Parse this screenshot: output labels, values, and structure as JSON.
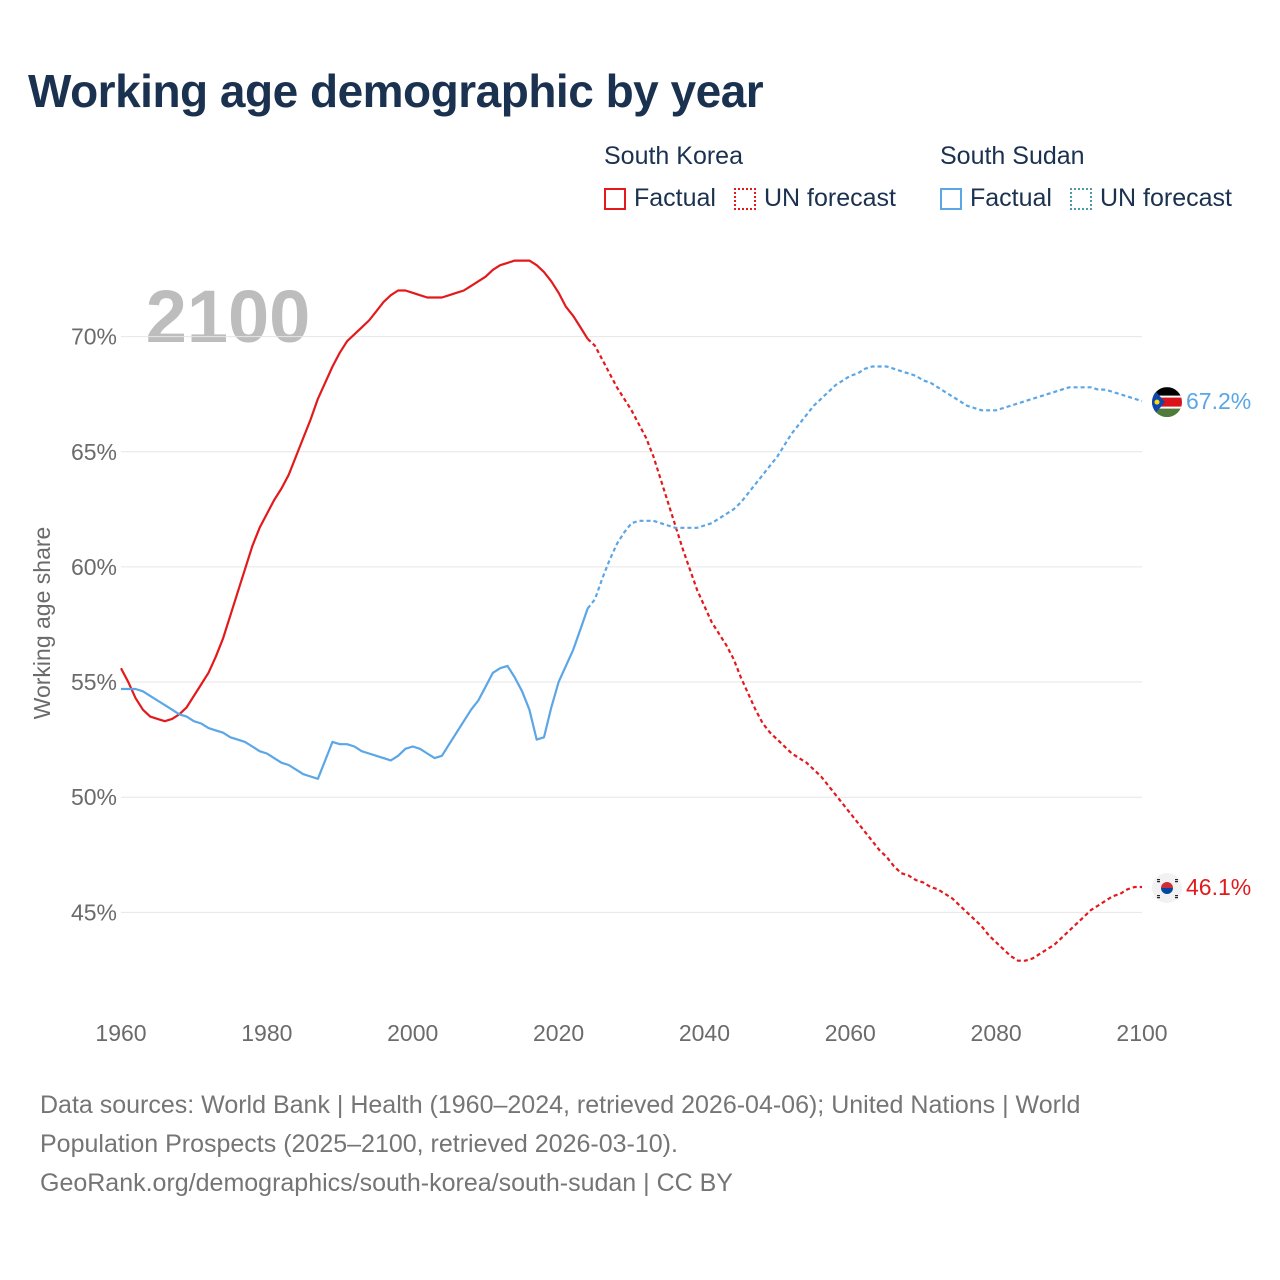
{
  "title": "Working age demographic by year",
  "year_watermark": "2100",
  "legend": {
    "groups": [
      {
        "name": "South Korea",
        "factual_label": "Factual",
        "forecast_label": "UN forecast",
        "color": "#e31a1c"
      },
      {
        "name": "South Sudan",
        "factual_label": "Factual",
        "forecast_label": "UN forecast",
        "color": "#5aa6e6"
      }
    ]
  },
  "footer": {
    "line1": "Data sources: World Bank | Health (1960–2024, retrieved 2026-04-06); United Nations | World",
    "line2": "Population Prospects (2025–2100, retrieved 2026-03-10).",
    "line3": "GeoRank.org/demographics/south-korea/south-sudan | CC BY"
  },
  "flags": {
    "south_korea": "south-korea-flag-icon",
    "south_sudan": "south-sudan-flag-icon"
  },
  "chart_data": {
    "type": "line",
    "ylabel": "Working age share",
    "xlabel": "",
    "xlim": [
      1960,
      2100
    ],
    "ylim": [
      40.5,
      73.5
    ],
    "x_ticks": [
      1960,
      1980,
      2000,
      2020,
      2040,
      2060,
      2080,
      2100
    ],
    "y_ticks": [
      45,
      50,
      55,
      60,
      65,
      70
    ],
    "y_tick_labels": [
      "45%",
      "50%",
      "55%",
      "60%",
      "65%",
      "70%"
    ],
    "grid": true,
    "series": [
      {
        "name": "South Korea",
        "color": "#e31a1c",
        "end_label": "46.1%",
        "factual": {
          "x": [
            1960,
            1961,
            1962,
            1963,
            1964,
            1965,
            1966,
            1967,
            1968,
            1969,
            1970,
            1971,
            1972,
            1973,
            1974,
            1975,
            1976,
            1977,
            1978,
            1979,
            1980,
            1981,
            1982,
            1983,
            1984,
            1985,
            1986,
            1987,
            1988,
            1989,
            1990,
            1991,
            1992,
            1993,
            1994,
            1995,
            1996,
            1997,
            1998,
            1999,
            2000,
            2001,
            2002,
            2003,
            2004,
            2005,
            2006,
            2007,
            2008,
            2009,
            2010,
            2011,
            2012,
            2013,
            2014,
            2015,
            2016,
            2017,
            2018,
            2019,
            2020,
            2021,
            2022,
            2023,
            2024
          ],
          "y": [
            55.6,
            55.0,
            54.3,
            53.8,
            53.5,
            53.4,
            53.3,
            53.4,
            53.6,
            53.9,
            54.4,
            54.9,
            55.4,
            56.1,
            56.9,
            57.9,
            58.9,
            59.9,
            60.9,
            61.7,
            62.3,
            62.9,
            63.4,
            64.0,
            64.8,
            65.6,
            66.4,
            67.3,
            68.0,
            68.7,
            69.3,
            69.8,
            70.1,
            70.4,
            70.7,
            71.1,
            71.5,
            71.8,
            72.0,
            72.0,
            71.9,
            71.8,
            71.7,
            71.7,
            71.7,
            71.8,
            71.9,
            72.0,
            72.2,
            72.4,
            72.6,
            72.9,
            73.1,
            73.2,
            73.3,
            73.3,
            73.3,
            73.1,
            72.8,
            72.4,
            71.9,
            71.3,
            70.9,
            70.4,
            69.9
          ]
        },
        "forecast": {
          "x": [
            2024,
            2025,
            2026,
            2027,
            2028,
            2029,
            2030,
            2031,
            2032,
            2033,
            2034,
            2035,
            2036,
            2037,
            2038,
            2039,
            2040,
            2041,
            2042,
            2043,
            2044,
            2045,
            2046,
            2047,
            2048,
            2049,
            2050,
            2051,
            2052,
            2053,
            2054,
            2055,
            2056,
            2057,
            2058,
            2059,
            2060,
            2061,
            2062,
            2063,
            2064,
            2065,
            2066,
            2067,
            2068,
            2069,
            2070,
            2071,
            2072,
            2073,
            2074,
            2075,
            2076,
            2077,
            2078,
            2079,
            2080,
            2081,
            2082,
            2083,
            2084,
            2085,
            2086,
            2087,
            2088,
            2089,
            2090,
            2091,
            2092,
            2093,
            2094,
            2095,
            2096,
            2097,
            2098,
            2099,
            2100
          ],
          "y": [
            69.9,
            69.6,
            69.0,
            68.4,
            67.8,
            67.3,
            66.8,
            66.2,
            65.6,
            64.8,
            63.8,
            62.8,
            61.8,
            60.8,
            59.9,
            59.0,
            58.3,
            57.6,
            57.1,
            56.6,
            56.0,
            55.2,
            54.5,
            53.8,
            53.2,
            52.8,
            52.5,
            52.2,
            51.9,
            51.7,
            51.5,
            51.2,
            50.9,
            50.5,
            50.1,
            49.7,
            49.3,
            48.9,
            48.5,
            48.1,
            47.7,
            47.4,
            47.0,
            46.7,
            46.6,
            46.4,
            46.3,
            46.1,
            46.0,
            45.8,
            45.6,
            45.3,
            45.0,
            44.7,
            44.4,
            44.0,
            43.7,
            43.4,
            43.1,
            42.9,
            42.9,
            43.0,
            43.2,
            43.4,
            43.6,
            43.9,
            44.2,
            44.5,
            44.8,
            45.1,
            45.3,
            45.5,
            45.7,
            45.8,
            46.0,
            46.1,
            46.1
          ]
        }
      },
      {
        "name": "South Sudan",
        "color": "#5aa6e6",
        "end_label": "67.2%",
        "factual": {
          "x": [
            1960,
            1961,
            1962,
            1963,
            1964,
            1965,
            1966,
            1967,
            1968,
            1969,
            1970,
            1971,
            1972,
            1973,
            1974,
            1975,
            1976,
            1977,
            1978,
            1979,
            1980,
            1981,
            1982,
            1983,
            1984,
            1985,
            1986,
            1987,
            1988,
            1989,
            1990,
            1991,
            1992,
            1993,
            1994,
            1995,
            1996,
            1997,
            1998,
            1999,
            2000,
            2001,
            2002,
            2003,
            2004,
            2005,
            2006,
            2007,
            2008,
            2009,
            2010,
            2011,
            2012,
            2013,
            2014,
            2015,
            2016,
            2017,
            2018,
            2019,
            2020,
            2021,
            2022,
            2023,
            2024
          ],
          "y": [
            54.7,
            54.7,
            54.7,
            54.6,
            54.4,
            54.2,
            54.0,
            53.8,
            53.6,
            53.5,
            53.3,
            53.2,
            53.0,
            52.9,
            52.8,
            52.6,
            52.5,
            52.4,
            52.2,
            52.0,
            51.9,
            51.7,
            51.5,
            51.4,
            51.2,
            51.0,
            50.9,
            50.8,
            51.6,
            52.4,
            52.3,
            52.3,
            52.2,
            52.0,
            51.9,
            51.8,
            51.7,
            51.6,
            51.8,
            52.1,
            52.2,
            52.1,
            51.9,
            51.7,
            51.8,
            52.3,
            52.8,
            53.3,
            53.8,
            54.2,
            54.8,
            55.4,
            55.6,
            55.7,
            55.2,
            54.6,
            53.8,
            52.5,
            52.6,
            53.9,
            55.0,
            55.7,
            56.4,
            57.3,
            58.2
          ]
        },
        "forecast": {
          "x": [
            2024,
            2025,
            2026,
            2027,
            2028,
            2029,
            2030,
            2031,
            2032,
            2033,
            2034,
            2035,
            2036,
            2037,
            2038,
            2039,
            2040,
            2041,
            2042,
            2043,
            2044,
            2045,
            2046,
            2047,
            2048,
            2049,
            2050,
            2051,
            2052,
            2053,
            2054,
            2055,
            2056,
            2057,
            2058,
            2059,
            2060,
            2061,
            2062,
            2063,
            2064,
            2065,
            2066,
            2067,
            2068,
            2069,
            2070,
            2071,
            2072,
            2073,
            2074,
            2075,
            2076,
            2077,
            2078,
            2079,
            2080,
            2081,
            2082,
            2083,
            2084,
            2085,
            2086,
            2087,
            2088,
            2089,
            2090,
            2091,
            2092,
            2093,
            2094,
            2095,
            2096,
            2097,
            2098,
            2099,
            2100
          ],
          "y": [
            58.2,
            58.6,
            59.5,
            60.3,
            61.0,
            61.5,
            61.9,
            62.0,
            62.0,
            62.0,
            61.9,
            61.8,
            61.7,
            61.7,
            61.7,
            61.7,
            61.8,
            61.9,
            62.1,
            62.3,
            62.5,
            62.8,
            63.2,
            63.6,
            64.0,
            64.4,
            64.8,
            65.3,
            65.8,
            66.2,
            66.6,
            67.0,
            67.3,
            67.6,
            67.9,
            68.1,
            68.3,
            68.4,
            68.6,
            68.7,
            68.7,
            68.7,
            68.6,
            68.5,
            68.4,
            68.3,
            68.1,
            68.0,
            67.8,
            67.6,
            67.4,
            67.2,
            67.0,
            66.9,
            66.8,
            66.8,
            66.8,
            66.9,
            67.0,
            67.1,
            67.2,
            67.3,
            67.4,
            67.5,
            67.6,
            67.7,
            67.8,
            67.8,
            67.8,
            67.8,
            67.7,
            67.7,
            67.6,
            67.5,
            67.4,
            67.3,
            67.2
          ]
        }
      }
    ]
  }
}
